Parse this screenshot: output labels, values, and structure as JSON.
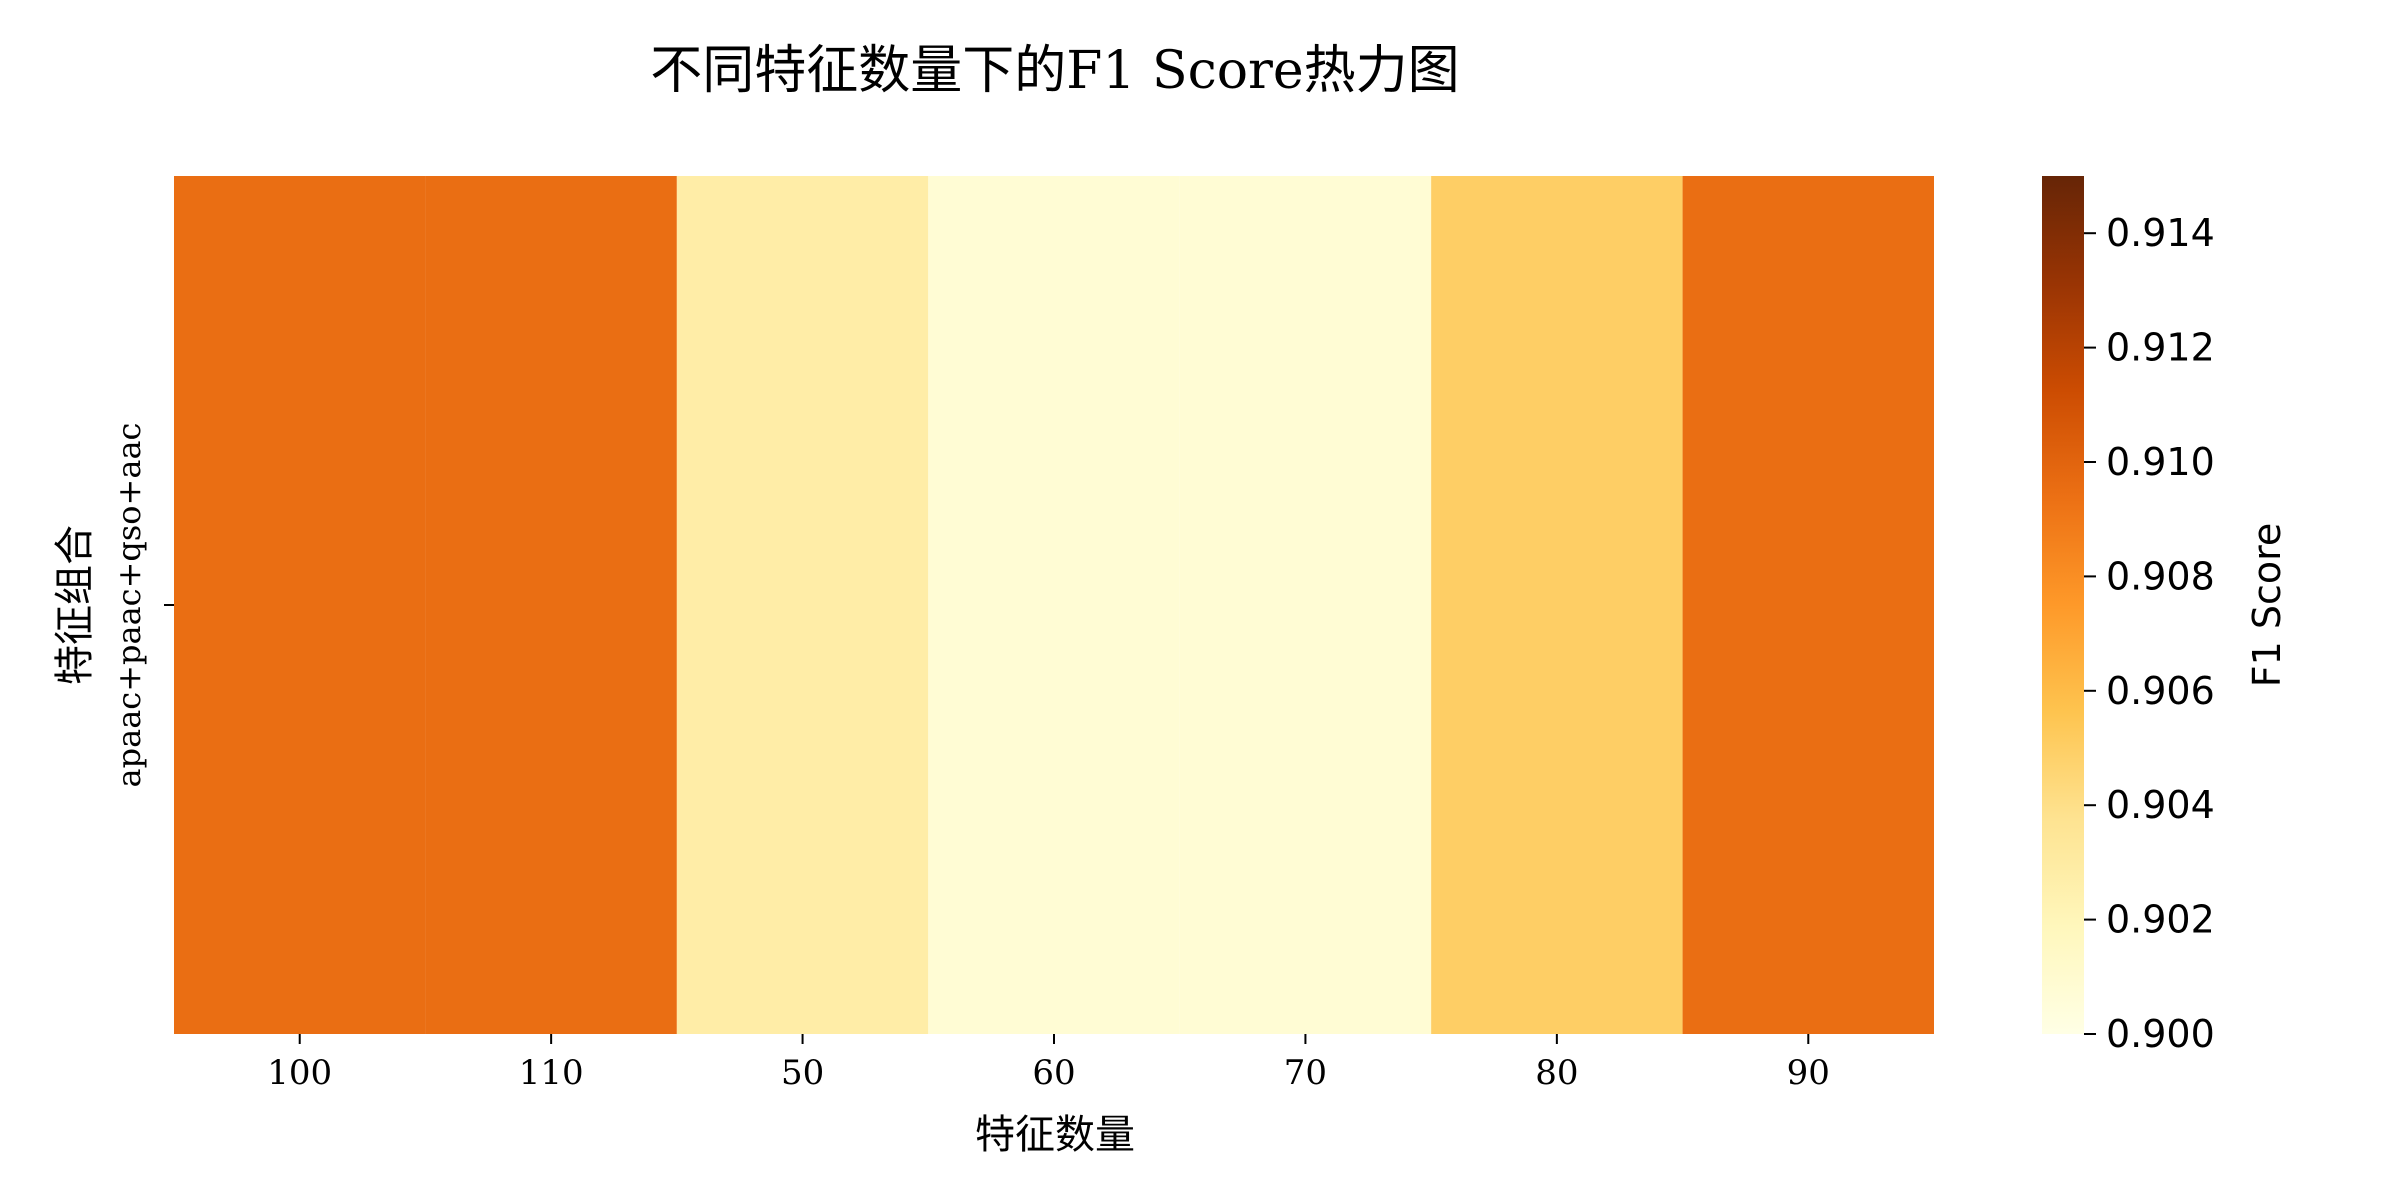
{
  "chart_data": {
    "type": "heatmap",
    "title": "不同特征数量下的F1 Score热力图",
    "xlabel": "特征数量",
    "ylabel": "特征组合",
    "x_categories": [
      "100",
      "110",
      "50",
      "60",
      "70",
      "80",
      "90"
    ],
    "y_categories": [
      "apaac+paac+qso+aac"
    ],
    "values": [
      [
        0.9095,
        0.9095,
        0.9028,
        0.9008,
        0.9008,
        0.905,
        0.9095
      ]
    ],
    "colorbar": {
      "label": "F1 Score",
      "range": [
        0.9,
        0.915
      ],
      "ticks": [
        "0.900",
        "0.902",
        "0.904",
        "0.906",
        "0.908",
        "0.910",
        "0.912",
        "0.914"
      ],
      "colormap": "YlOrBr",
      "stops": [
        "#ffffe5",
        "#fff7bc",
        "#fee391",
        "#fec44f",
        "#fe9929",
        "#ec7014",
        "#cc4c02",
        "#993404",
        "#662506"
      ]
    }
  }
}
